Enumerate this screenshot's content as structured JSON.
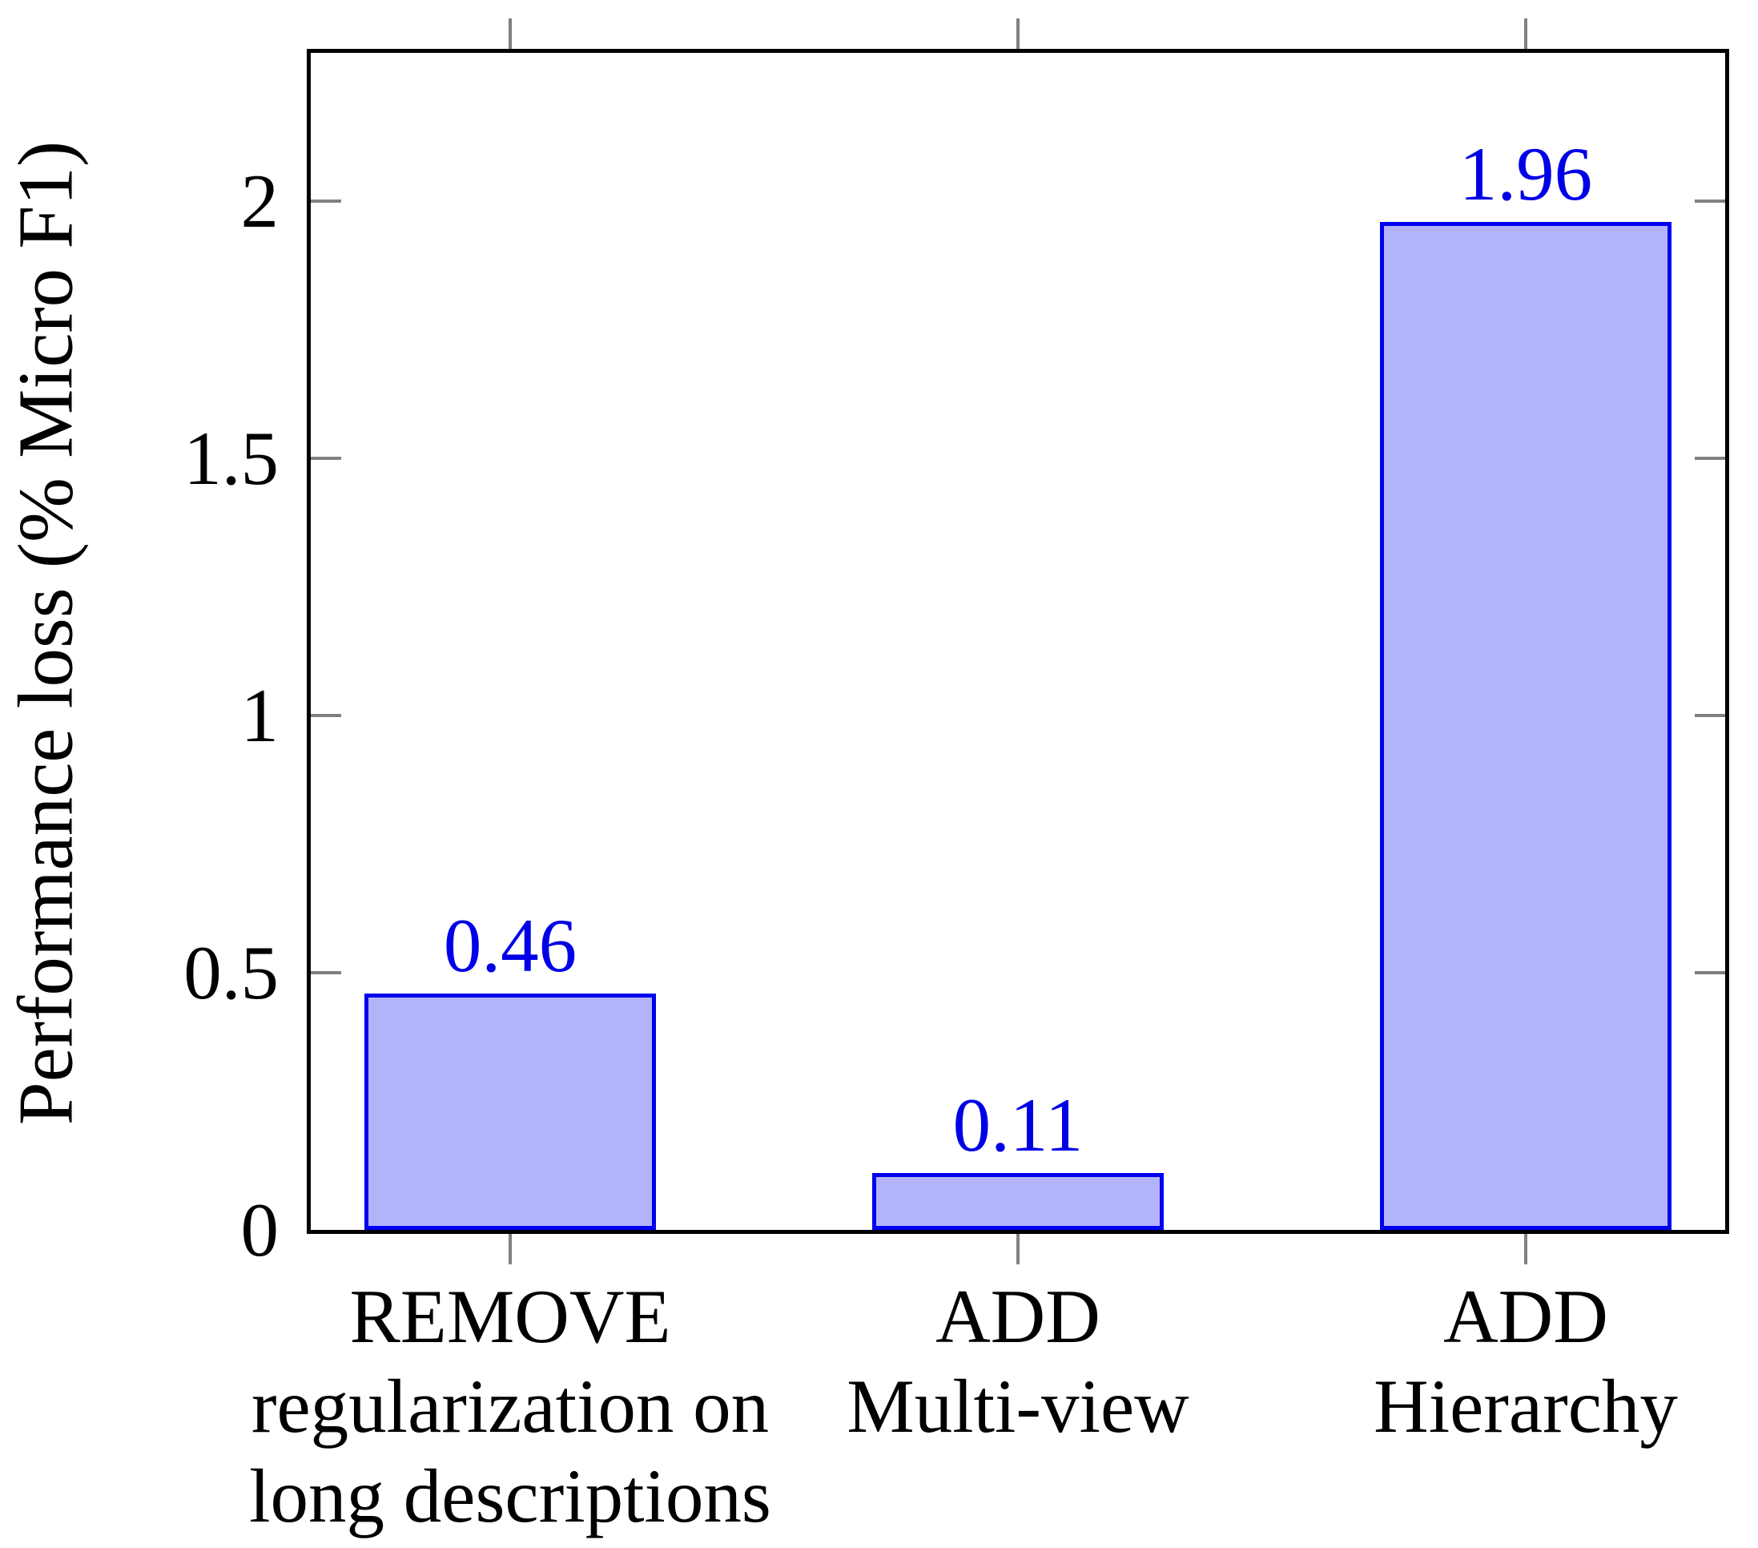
{
  "figure": {
    "background": "#ffffff"
  },
  "chart_data": {
    "type": "bar",
    "title": "",
    "xlabel": "",
    "ylabel": "Performance loss (% Micro F1)",
    "categories": [
      [
        "REMOVE",
        "regularization on",
        "long descriptions"
      ],
      [
        "ADD",
        "Multi-view"
      ],
      [
        "ADD",
        "Hierarchy"
      ]
    ],
    "values": [
      0.46,
      0.11,
      1.96
    ],
    "value_labels": [
      "0.46",
      "0.11",
      "1.96"
    ],
    "yticks": {
      "values": [
        0,
        0.5,
        1,
        1.5,
        2
      ],
      "labels": [
        "0",
        "0.5",
        "1",
        "1.5",
        "2"
      ]
    },
    "ylim": [
      0,
      2.3
    ],
    "grid": false,
    "legend": null,
    "tick_style": "y-ticks inside both sides, x-ticks outside top and bottom",
    "colors": {
      "bar_fill": "#b3b3fa",
      "bar_border": "#0000f0",
      "value_label": "#0000e6",
      "axis_border": "#000000",
      "tick": "#808080",
      "text": "#000000"
    }
  }
}
